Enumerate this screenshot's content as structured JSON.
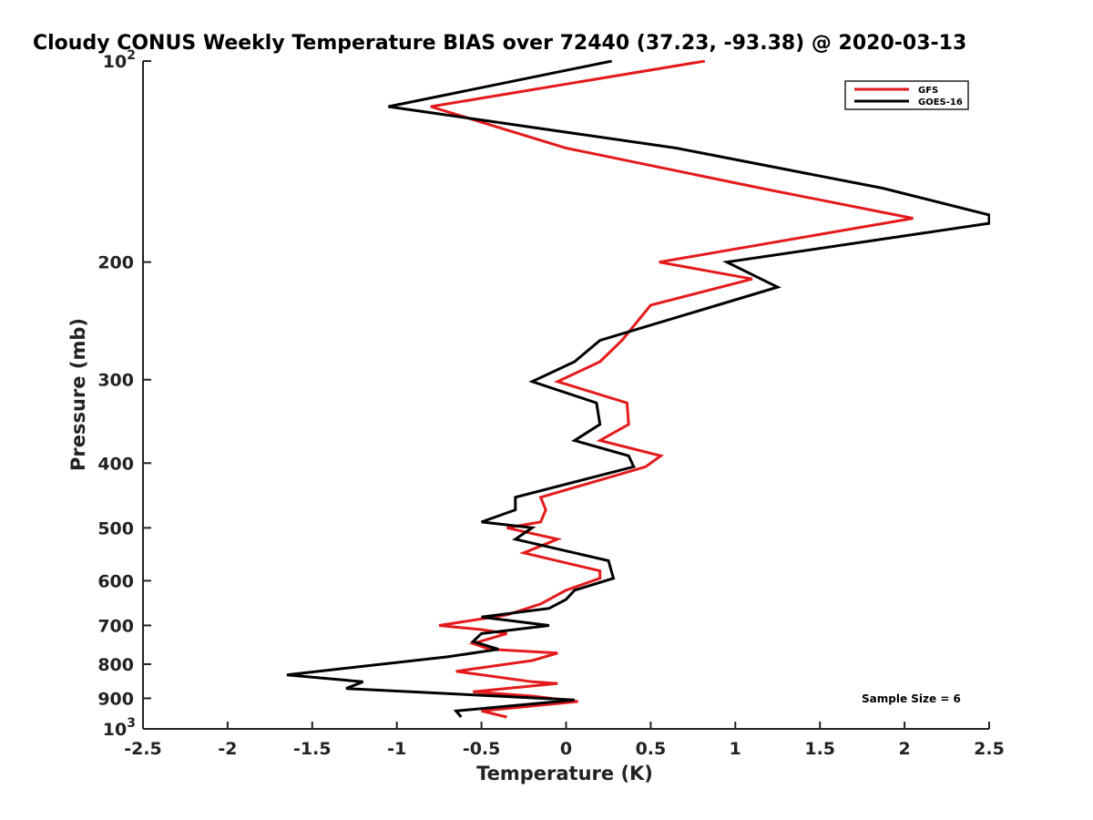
{
  "chart_data": {
    "type": "line",
    "title": "Cloudy CONUS Weekly Temperature BIAS over 72440 (37.23, -93.38) @ 2020-03-13",
    "xlabel": "Temperature (K)",
    "ylabel": "Pressure (mb)",
    "xlim": [
      -2.5,
      2.5
    ],
    "ylim": [
      100,
      1000
    ],
    "y_scale": "log",
    "y_reversed": true,
    "grid": false,
    "legend_position": "top-right",
    "x_ticks": [
      "-2.5",
      "-2",
      "-1.5",
      "-1",
      "-0.5",
      "0",
      "0.5",
      "1",
      "1.5",
      "2",
      "2.5"
    ],
    "x_tick_values": [
      -2.5,
      -2,
      -1.5,
      -1,
      -0.5,
      0,
      0.5,
      1,
      1.5,
      2,
      2.5
    ],
    "y_ticks": [
      {
        "value": 100,
        "base": "10",
        "exp": "2"
      },
      {
        "value": 200,
        "label": "200"
      },
      {
        "value": 300,
        "label": "300"
      },
      {
        "value": 400,
        "label": "400"
      },
      {
        "value": 500,
        "label": "500"
      },
      {
        "value": 600,
        "label": "600"
      },
      {
        "value": 700,
        "label": "700"
      },
      {
        "value": 800,
        "label": "800"
      },
      {
        "value": 900,
        "label": "900"
      },
      {
        "value": 1000,
        "base": "10",
        "exp": "3"
      }
    ],
    "annotation": "Sample Size = 6",
    "series": [
      {
        "name": "GFS",
        "color": "#e41a1c",
        "points": [
          [
            0.82,
            100
          ],
          [
            -0.8,
            117
          ],
          [
            0.0,
            135
          ],
          [
            1.15,
            155
          ],
          [
            2.05,
            172
          ],
          [
            0.55,
            200
          ],
          [
            1.1,
            212
          ],
          [
            0.5,
            232
          ],
          [
            0.33,
            262
          ],
          [
            0.2,
            282
          ],
          [
            -0.05,
            302
          ],
          [
            0.36,
            325
          ],
          [
            0.37,
            350
          ],
          [
            0.2,
            370
          ],
          [
            0.56,
            390
          ],
          [
            0.47,
            405
          ],
          [
            -0.15,
            450
          ],
          [
            -0.12,
            470
          ],
          [
            -0.15,
            490
          ],
          [
            -0.35,
            500
          ],
          [
            -0.05,
            520
          ],
          [
            -0.25,
            545
          ],
          [
            0.2,
            580
          ],
          [
            0.2,
            595
          ],
          [
            0.0,
            620
          ],
          [
            -0.15,
            650
          ],
          [
            -0.35,
            675
          ],
          [
            -0.75,
            700
          ],
          [
            -0.5,
            710
          ],
          [
            -0.35,
            720
          ],
          [
            -0.55,
            745
          ],
          [
            -0.45,
            760
          ],
          [
            -0.05,
            770
          ],
          [
            -0.2,
            790
          ],
          [
            -0.65,
            820
          ],
          [
            -0.2,
            850
          ],
          [
            -0.05,
            855
          ],
          [
            -0.55,
            880
          ],
          [
            -0.2,
            893
          ],
          [
            0.07,
            910
          ],
          [
            -0.5,
            940
          ],
          [
            -0.35,
            960
          ]
        ]
      },
      {
        "name": "GOES-16",
        "color": "#000000",
        "points": [
          [
            0.27,
            100
          ],
          [
            -1.05,
            117
          ],
          [
            0.65,
            135
          ],
          [
            1.87,
            155
          ],
          [
            2.5,
            170
          ],
          [
            2.5,
            175
          ],
          [
            0.95,
            200
          ],
          [
            1.25,
            218
          ],
          [
            0.2,
            262
          ],
          [
            0.05,
            282
          ],
          [
            -0.2,
            302
          ],
          [
            0.18,
            325
          ],
          [
            0.2,
            350
          ],
          [
            0.05,
            370
          ],
          [
            0.37,
            390
          ],
          [
            0.4,
            405
          ],
          [
            -0.3,
            450
          ],
          [
            -0.3,
            470
          ],
          [
            -0.5,
            490
          ],
          [
            -0.2,
            500
          ],
          [
            -0.3,
            520
          ],
          [
            0.25,
            560
          ],
          [
            0.28,
            595
          ],
          [
            0.05,
            620
          ],
          [
            0.0,
            640
          ],
          [
            -0.1,
            660
          ],
          [
            -0.5,
            680
          ],
          [
            -0.1,
            700
          ],
          [
            -0.5,
            720
          ],
          [
            -0.55,
            740
          ],
          [
            -0.4,
            760
          ],
          [
            -0.7,
            780
          ],
          [
            -1.65,
            830
          ],
          [
            -1.2,
            850
          ],
          [
            -1.3,
            870
          ],
          [
            0.05,
            905
          ],
          [
            -0.65,
            940
          ],
          [
            -0.62,
            960
          ]
        ]
      }
    ]
  }
}
